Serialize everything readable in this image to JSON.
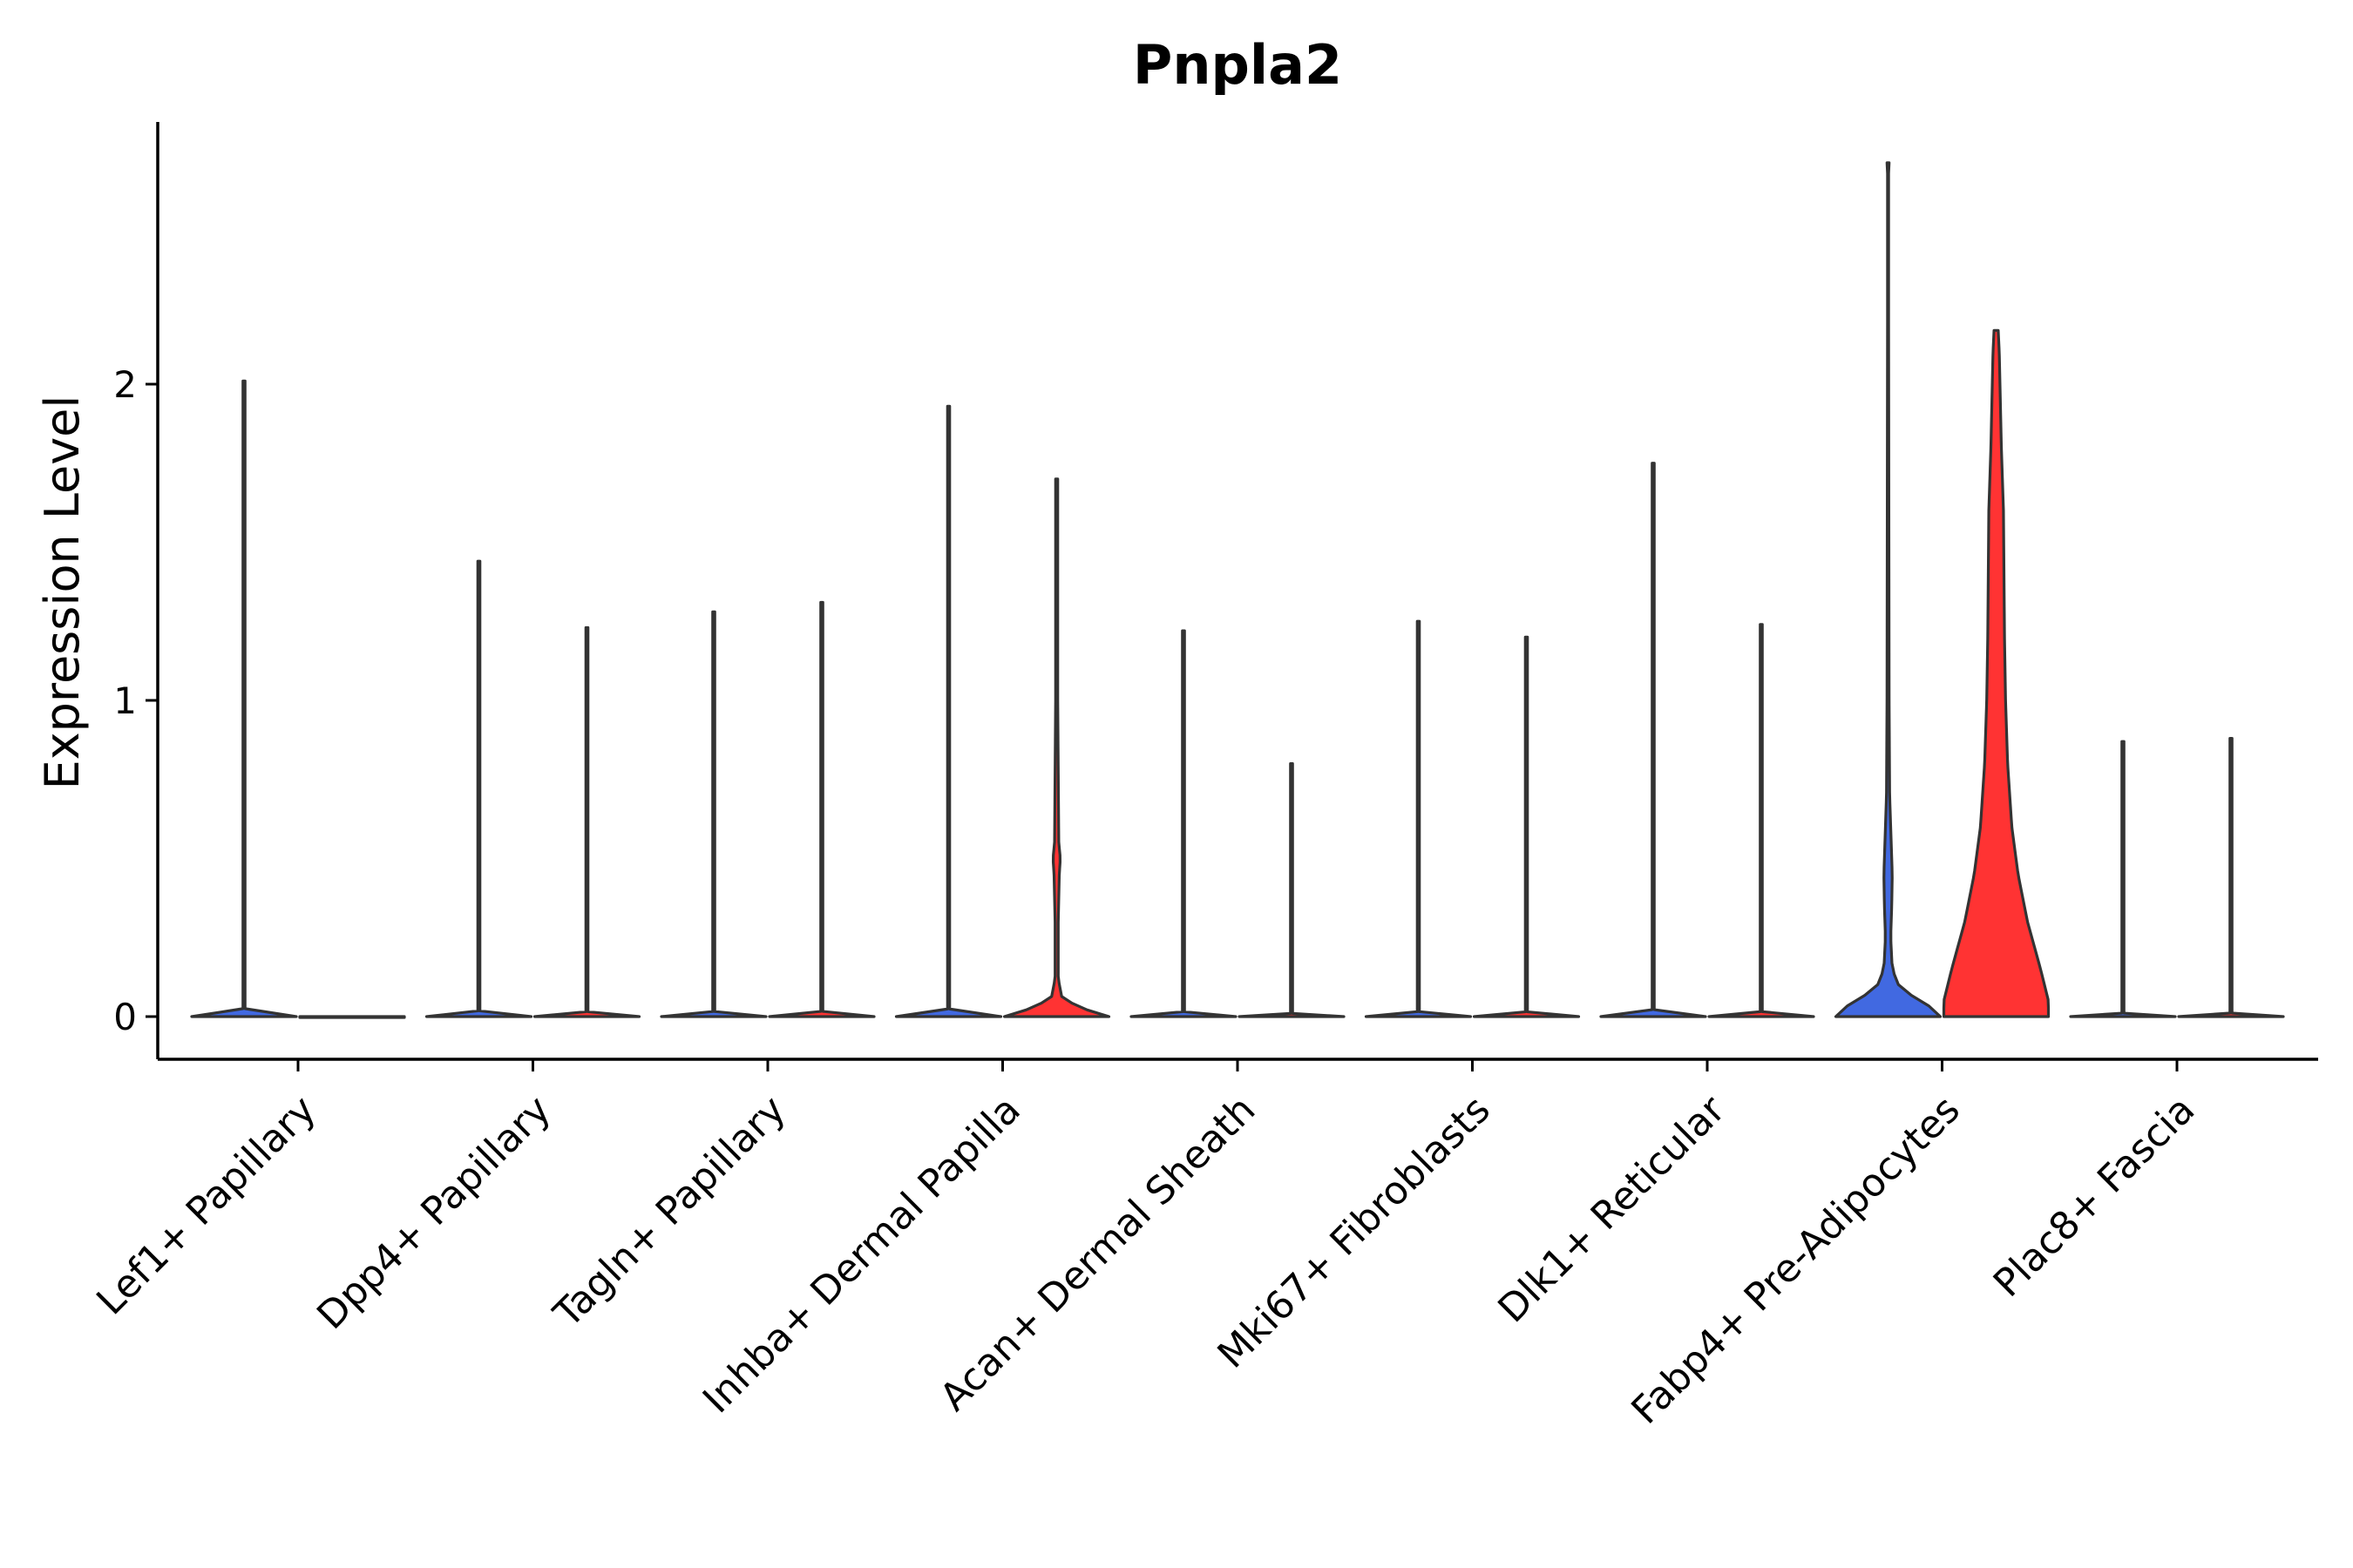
{
  "chart_data": {
    "type": "violin",
    "title": "Pnpla2",
    "xlabel": "",
    "ylabel": "Expression Level",
    "ylim": [
      -0.14,
      2.84
    ],
    "yticks": [
      0,
      1,
      2
    ],
    "grid": false,
    "legend": "none",
    "group_colors": {
      "1": "#4169E1",
      "2": "#FF3333"
    },
    "categories": [
      "Lef1+ Papillary",
      "Dpp4+ Papillary",
      "Tagln+ Papillary",
      "Inhba+ Dermal Papilla",
      "Acan+ Dermal Sheath",
      "Mki67+ Fibroblasts",
      "Dlk1+ Reticular",
      "Fabp4+ Pre-Adipocytes",
      "Plac8+ Fascia"
    ],
    "violins": [
      {
        "category": "Lef1+ Papillary",
        "group": 1,
        "max": 2.01,
        "profile": [
          [
            0,
            1
          ],
          [
            0.01,
            0.02
          ],
          [
            2.01,
            0.02
          ]
        ]
      },
      {
        "category": "Lef1+ Papillary",
        "group": 2,
        "max": 0,
        "profile": [
          [
            0,
            1
          ]
        ]
      },
      {
        "category": "Dpp4+ Papillary",
        "group": 1,
        "max": 1.44,
        "profile": [
          [
            0,
            1
          ],
          [
            0.01,
            0.02
          ],
          [
            1.44,
            0.02
          ]
        ]
      },
      {
        "category": "Dpp4+ Papillary",
        "group": 2,
        "max": 1.23,
        "profile": [
          [
            0,
            1
          ],
          [
            0.01,
            0.02
          ],
          [
            1.23,
            0.02
          ]
        ]
      },
      {
        "category": "Tagln+ Papillary",
        "group": 1,
        "max": 1.28,
        "profile": [
          [
            0,
            1
          ],
          [
            0.01,
            0.02
          ],
          [
            1.28,
            0.02
          ]
        ]
      },
      {
        "category": "Tagln+ Papillary",
        "group": 2,
        "max": 1.31,
        "profile": [
          [
            0,
            1
          ],
          [
            0.01,
            0.02
          ],
          [
            1.31,
            0.02
          ]
        ]
      },
      {
        "category": "Inhba+ Dermal Papilla",
        "group": 1,
        "max": 1.93,
        "profile": [
          [
            0,
            1
          ],
          [
            0.01,
            0.02
          ],
          [
            1.93,
            0.02
          ]
        ]
      },
      {
        "category": "Inhba+ Dermal Papilla",
        "group": 2,
        "max": 1.7,
        "profile": [
          [
            0,
            1
          ],
          [
            0.02,
            0.6
          ],
          [
            0.04,
            0.32
          ],
          [
            0.06,
            0.1
          ],
          [
            0.12,
            0.03
          ],
          [
            0.3,
            0.03
          ],
          [
            0.45,
            0.05
          ],
          [
            0.5,
            0.07
          ],
          [
            0.55,
            0.04
          ],
          [
            1.0,
            0.02
          ],
          [
            1.7,
            0.02
          ]
        ]
      },
      {
        "category": "Acan+ Dermal Sheath",
        "group": 1,
        "max": 1.22,
        "profile": [
          [
            0,
            1
          ],
          [
            0.01,
            0.02
          ],
          [
            1.22,
            0.02
          ]
        ]
      },
      {
        "category": "Acan+ Dermal Sheath",
        "group": 2,
        "max": 0.8,
        "profile": [
          [
            0,
            1
          ],
          [
            0.01,
            0.02
          ],
          [
            0.8,
            0.02
          ]
        ]
      },
      {
        "category": "Mki67+ Fibroblasts",
        "group": 1,
        "max": 1.25,
        "profile": [
          [
            0,
            1
          ],
          [
            0.01,
            0.02
          ],
          [
            1.25,
            0.02
          ]
        ]
      },
      {
        "category": "Mki67+ Fibroblasts",
        "group": 2,
        "max": 1.2,
        "profile": [
          [
            0,
            1
          ],
          [
            0.01,
            0.02
          ],
          [
            1.2,
            0.02
          ]
        ]
      },
      {
        "category": "Dlk1+ Reticular",
        "group": 1,
        "max": 1.75,
        "profile": [
          [
            0,
            1
          ],
          [
            0.01,
            0.02
          ],
          [
            1.75,
            0.02
          ]
        ]
      },
      {
        "category": "Dlk1+ Reticular",
        "group": 2,
        "max": 1.24,
        "profile": [
          [
            0,
            1
          ],
          [
            0.01,
            0.02
          ],
          [
            1.24,
            0.02
          ]
        ]
      },
      {
        "category": "Fabp4+ Pre-Adipocytes",
        "group": 1,
        "max": 2.7,
        "profile": [
          [
            0,
            1
          ],
          [
            0.03,
            0.82
          ],
          [
            0.06,
            0.5
          ],
          [
            0.1,
            0.2
          ],
          [
            0.15,
            0.08
          ],
          [
            0.25,
            0.05
          ],
          [
            0.35,
            0.07
          ],
          [
            0.45,
            0.08
          ],
          [
            0.55,
            0.06
          ],
          [
            0.7,
            0.03
          ],
          [
            1.0,
            0.02
          ],
          [
            2.2,
            0.01
          ],
          [
            2.7,
            0.01
          ]
        ]
      },
      {
        "category": "Fabp4+ Pre-Adipocytes",
        "group": 2,
        "max": 2.17,
        "profile": [
          [
            0,
            1
          ],
          [
            0.05,
            1.0
          ],
          [
            0.15,
            0.85
          ],
          [
            0.3,
            0.6
          ],
          [
            0.45,
            0.42
          ],
          [
            0.6,
            0.3
          ],
          [
            0.8,
            0.22
          ],
          [
            1.0,
            0.18
          ],
          [
            1.2,
            0.16
          ],
          [
            1.4,
            0.15
          ],
          [
            1.6,
            0.14
          ],
          [
            1.7,
            0.12
          ],
          [
            1.8,
            0.1
          ],
          [
            1.95,
            0.08
          ],
          [
            2.1,
            0.06
          ],
          [
            2.17,
            0.04
          ]
        ]
      },
      {
        "category": "Plac8+ Fascia",
        "group": 1,
        "max": 0.87,
        "profile": [
          [
            0,
            1
          ],
          [
            0.01,
            0.02
          ],
          [
            0.87,
            0.02
          ]
        ]
      },
      {
        "category": "Plac8+ Fascia",
        "group": 2,
        "max": 0.88,
        "profile": [
          [
            0,
            1
          ],
          [
            0.01,
            0.02
          ],
          [
            0.88,
            0.02
          ]
        ]
      }
    ]
  }
}
